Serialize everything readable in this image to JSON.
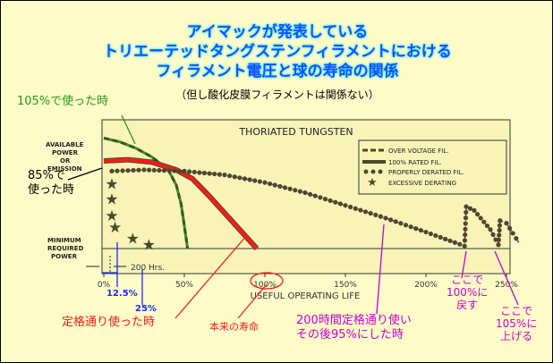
{
  "header": {
    "title_lines": [
      "アイマックが発表している",
      "トリエーテッドタングステンフィラメントにおける",
      "フィラメント電圧と球の寿命の関係"
    ],
    "note": "（但し酸化皮膜フィラメントは関係ない）"
  },
  "annotations": {
    "over": "105%で使った時",
    "excess": [
      "85%で",
      "使った時"
    ],
    "rated": "定格通り使った時",
    "life": "本来の寿命",
    "derated": [
      "200時間定格通り使い",
      "その後95%にした時"
    ],
    "back": [
      "ここで",
      "100%に",
      "戻す"
    ],
    "up": [
      "ここで",
      "105%に",
      "上げる"
    ],
    "p125": "12.5%",
    "p25": "25%"
  },
  "colors": {
    "over": "#2a9a1a",
    "excess": "#000000",
    "rated": "#ff1a1a",
    "derated": "#cc00cc",
    "pct": "#1a2bff",
    "curve": "#4a4a2a"
  },
  "chart_data": {
    "type": "line",
    "title": "THORIATED TUNGSTEN",
    "xlabel": "USEFUL OPERATING LIFE",
    "ylabel_top": [
      "AVAILABLE",
      "POWER",
      "OR",
      "EMISSION"
    ],
    "ylabel_bottom": [
      "MINIMUM",
      "REQUIRED",
      "POWER"
    ],
    "hours_label": "200 Hrs.",
    "xticks": [
      "0%",
      "50%",
      "100%",
      "150%",
      "200%",
      "250%"
    ],
    "xtick_values": [
      0,
      50,
      100,
      150,
      200,
      250
    ],
    "xlim": [
      0,
      260
    ],
    "ylim": [
      0,
      100
    ],
    "legend_position": "top-right",
    "series": [
      {
        "name": "OVER VOLTAGE FIL.",
        "style": "dashed",
        "x": [
          0,
          10,
          20,
          30,
          40,
          45,
          48,
          50,
          52
        ],
        "y": [
          87,
          84,
          79,
          72,
          62,
          50,
          35,
          18,
          0
        ]
      },
      {
        "name": "100% RATED FIL.",
        "style": "solid",
        "x": [
          0,
          15,
          30,
          45,
          55,
          65,
          75,
          85,
          95
        ],
        "y": [
          69,
          70,
          68,
          62,
          55,
          42,
          28,
          14,
          0
        ]
      },
      {
        "name": "PROPERLY DERATED FIL.",
        "style": "dots",
        "x": [
          5,
          25,
          50,
          75,
          100,
          125,
          150,
          175,
          200,
          224,
          225,
          230,
          240,
          245,
          246,
          250,
          258
        ],
        "y": [
          61,
          62,
          61,
          58,
          52,
          44,
          34,
          24,
          13,
          2,
          33,
          30,
          15,
          3,
          22,
          20,
          4
        ]
      },
      {
        "name": "EXCESSIVE DERATING",
        "style": "stars",
        "x": [
          5,
          5,
          5,
          7,
          18,
          28
        ],
        "y": [
          51,
          39,
          26,
          17,
          8,
          3
        ]
      }
    ]
  }
}
